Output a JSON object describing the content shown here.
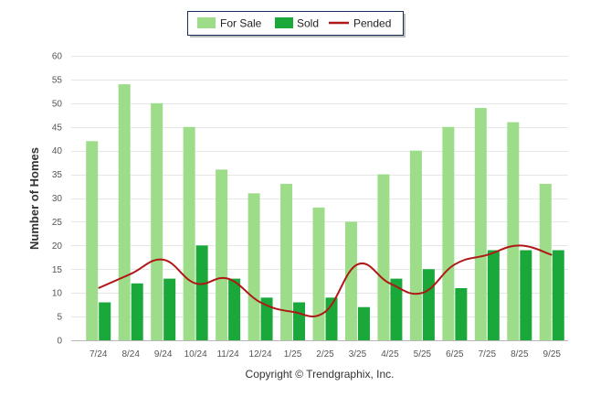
{
  "chart_data": {
    "type": "bar",
    "categories": [
      "7/24",
      "8/24",
      "9/24",
      "10/24",
      "11/24",
      "12/24",
      "1/25",
      "2/25",
      "3/25",
      "4/25",
      "5/25",
      "6/25",
      "7/25",
      "8/25",
      "9/25"
    ],
    "series": [
      {
        "name": "For Sale",
        "type": "bar",
        "color": "#9ddd8a",
        "values": [
          42,
          54,
          50,
          45,
          36,
          31,
          33,
          28,
          25,
          35,
          40,
          45,
          49,
          46,
          33
        ]
      },
      {
        "name": "Sold",
        "type": "bar",
        "color": "#1aa83a",
        "values": [
          8,
          12,
          13,
          20,
          13,
          9,
          8,
          9,
          7,
          13,
          15,
          11,
          19,
          19,
          19
        ]
      },
      {
        "name": "Pended",
        "type": "line",
        "color": "#b01818",
        "values": [
          11,
          14,
          17,
          12,
          13,
          8,
          6,
          6,
          16,
          12,
          10,
          16,
          18,
          20,
          18
        ]
      }
    ],
    "xlabel": "",
    "ylabel": "Number of Homes",
    "ylim": [
      0,
      60
    ],
    "yticks": [
      0,
      5,
      10,
      15,
      20,
      25,
      30,
      35,
      40,
      45,
      50,
      55,
      60
    ],
    "grid": true,
    "legend_position": "top-center"
  },
  "legend": {
    "for_sale": "For Sale",
    "sold": "Sold",
    "pended": "Pended"
  },
  "copyright": "Copyright © Trendgraphix, Inc."
}
